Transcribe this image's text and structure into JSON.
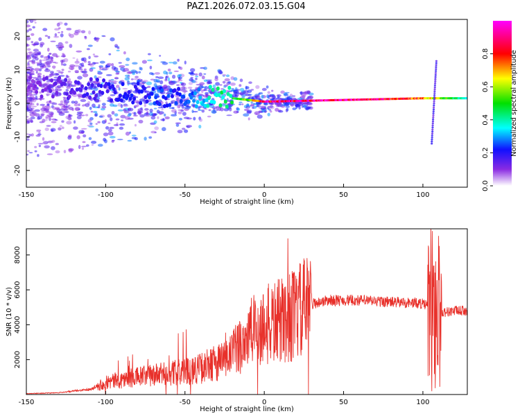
{
  "title": "PAZ1.2026.072.03.15.G04",
  "chart_data": [
    {
      "type": "heatmap",
      "xlabel": "Height of straight line (km)",
      "ylabel": "Frequency (Hz)",
      "xlim": [
        -150,
        128
      ],
      "ylim": [
        -25,
        25
      ],
      "xticks": [
        "-150",
        "-100",
        "-50",
        "0",
        "50",
        "100"
      ],
      "yticks": [
        "-20",
        "-10",
        "0",
        "10",
        "20"
      ],
      "colorbar": {
        "label": "Normalized spectral amplitude",
        "range": [
          0,
          1
        ],
        "ticks": [
          "0.0",
          "0.2",
          "0.4",
          "0.6",
          "0.8"
        ]
      },
      "ridge": {
        "frequency_hz": [
          [
            -150,
            5
          ],
          [
            -100,
            4
          ],
          [
            -60,
            2
          ],
          [
            -30,
            2
          ],
          [
            0,
            0.5
          ],
          [
            50,
            1
          ],
          [
            100,
            1.5
          ],
          [
            128,
            1.5
          ]
        ],
        "amplitude": [
          [
            -150,
            0.1
          ],
          [
            -100,
            0.2
          ],
          [
            -50,
            0.25
          ],
          [
            -25,
            0.45
          ],
          [
            -10,
            0.6
          ],
          [
            0,
            0.9
          ],
          [
            50,
            0.95
          ],
          [
            100,
            0.8
          ],
          [
            128,
            0.35
          ]
        ]
      }
    },
    {
      "type": "line",
      "xlabel": "Height of straight line (km)",
      "ylabel": "SNR (10 * v/v)",
      "xlim": [
        -150,
        128
      ],
      "ylim": [
        0,
        9500
      ],
      "xticks": [
        "-150",
        "-100",
        "-50",
        "0",
        "50",
        "100"
      ],
      "yticks": [
        "2000",
        "4000",
        "6000",
        "8000"
      ],
      "series": [
        {
          "name": "SNR",
          "color": "#e8302a",
          "points": [
            [
              -150,
              50
            ],
            [
              -130,
              100
            ],
            [
              -110,
              300
            ],
            [
              -100,
              700
            ],
            [
              -80,
              1000
            ],
            [
              -60,
              1200
            ],
            [
              -40,
              1500
            ],
            [
              -25,
              2000
            ],
            [
              -20,
              2300
            ],
            [
              -15,
              2900
            ],
            [
              -10,
              3400
            ],
            [
              0,
              3900
            ],
            [
              10,
              4200
            ],
            [
              20,
              4600
            ],
            [
              30,
              5200
            ],
            [
              40,
              5400
            ],
            [
              60,
              5400
            ],
            [
              80,
              5300
            ],
            [
              95,
              5250
            ],
            [
              100,
              5200
            ],
            [
              104,
              5000
            ],
            [
              108,
              4800
            ],
            [
              112,
              4700
            ],
            [
              120,
              4800
            ],
            [
              128,
              4800
            ]
          ]
        }
      ]
    }
  ]
}
